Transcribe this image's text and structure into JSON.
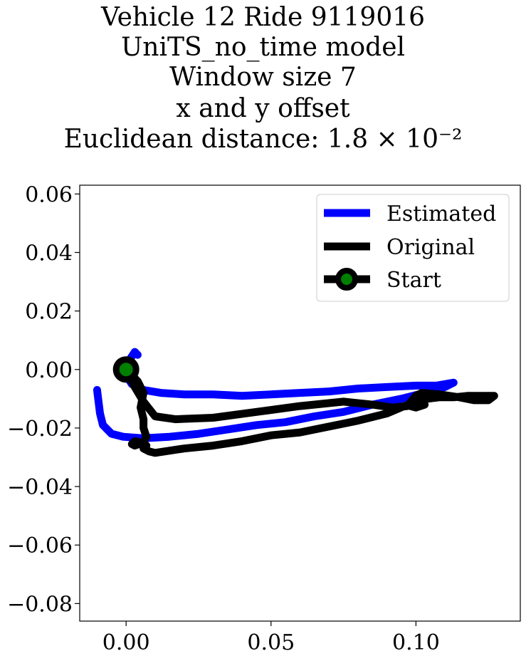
{
  "title_lines": [
    "Vehicle 12 Ride 9119016",
    "UniTS_no_time model",
    "Window size 7",
    "x and y offset",
    "Euclidean distance: 1.8 × 10⁻²"
  ],
  "chart_data": {
    "type": "line",
    "title": "Vehicle 12 Ride 9119016 UniTS_no_time model Window size 7 x and y offset Euclidean distance: 1.8 × 10⁻²",
    "xlabel": "",
    "ylabel": "",
    "xlim": [
      -0.016,
      0.136
    ],
    "ylim": [
      -0.086,
      0.063
    ],
    "xticks": [
      0.0,
      0.05,
      0.1
    ],
    "xtick_labels": [
      "0.00",
      "0.05",
      "0.10"
    ],
    "yticks": [
      0.06,
      0.04,
      0.02,
      0.0,
      -0.02,
      -0.04,
      -0.06,
      -0.08
    ],
    "ytick_labels": [
      "0.06",
      "0.04",
      "0.02",
      "0.00",
      "−0.02",
      "−0.04",
      "−0.06",
      "−0.08"
    ],
    "grid": false,
    "legend_position": "top-right",
    "series": [
      {
        "name": "Estimated",
        "color": "#0000ff",
        "x": [
          0.004,
          0.003,
          0.001,
          0.0,
          0.002,
          0.006,
          0.012,
          0.02,
          0.03,
          0.04,
          0.05,
          0.06,
          0.07,
          0.08,
          0.09,
          0.1,
          0.107,
          0.113,
          0.11,
          0.103,
          0.095,
          0.085,
          0.075,
          0.065,
          0.055,
          0.045,
          0.035,
          0.025,
          0.015,
          0.006,
          -0.001,
          -0.005,
          -0.008,
          -0.009,
          -0.01
        ],
        "y": [
          0.005,
          0.006,
          0.003,
          -0.002,
          -0.005,
          -0.007,
          -0.008,
          -0.0085,
          -0.0085,
          -0.009,
          -0.0085,
          -0.008,
          -0.0075,
          -0.0065,
          -0.006,
          -0.0055,
          -0.0055,
          -0.0045,
          -0.006,
          -0.008,
          -0.01,
          -0.012,
          -0.0145,
          -0.016,
          -0.018,
          -0.019,
          -0.0205,
          -0.022,
          -0.023,
          -0.0235,
          -0.023,
          -0.022,
          -0.019,
          -0.015,
          -0.007
        ]
      },
      {
        "name": "Original",
        "color": "#000000",
        "x": [
          0.0,
          0.003,
          0.006,
          0.01,
          0.017,
          0.03,
          0.045,
          0.06,
          0.075,
          0.085,
          0.092,
          0.097,
          0.1,
          0.102,
          0.108,
          0.115,
          0.12,
          0.125,
          0.127,
          0.123,
          0.118,
          0.113,
          0.108,
          0.104,
          0.1,
          0.098,
          0.1,
          0.103,
          0.1,
          0.096,
          0.09,
          0.08,
          0.07,
          0.06,
          0.05,
          0.04,
          0.03,
          0.02,
          0.01,
          0.008,
          0.006,
          0.007,
          0.005,
          0.003,
          0.002,
          0.003,
          0.006,
          0.007,
          0.006,
          0.006,
          0.005,
          0.006,
          0.004,
          0.0
        ],
        "y": [
          0.0,
          -0.006,
          -0.011,
          -0.016,
          -0.017,
          -0.0165,
          -0.0145,
          -0.0125,
          -0.011,
          -0.012,
          -0.013,
          -0.0125,
          -0.009,
          -0.008,
          -0.0085,
          -0.0095,
          -0.0105,
          -0.0105,
          -0.009,
          -0.009,
          -0.009,
          -0.0095,
          -0.0095,
          -0.01,
          -0.0115,
          -0.0125,
          -0.013,
          -0.012,
          -0.0115,
          -0.0125,
          -0.015,
          -0.0175,
          -0.0195,
          -0.0215,
          -0.0225,
          -0.0245,
          -0.026,
          -0.027,
          -0.0285,
          -0.028,
          -0.027,
          -0.026,
          -0.025,
          -0.0245,
          -0.0255,
          -0.026,
          -0.025,
          -0.023,
          -0.02,
          -0.017,
          -0.013,
          -0.008,
          -0.004,
          0.0
        ]
      }
    ],
    "start_point": {
      "name": "Start",
      "x": 0.0,
      "y": 0.0,
      "marker_color": "#007f00",
      "edge_color": "#000000"
    }
  }
}
